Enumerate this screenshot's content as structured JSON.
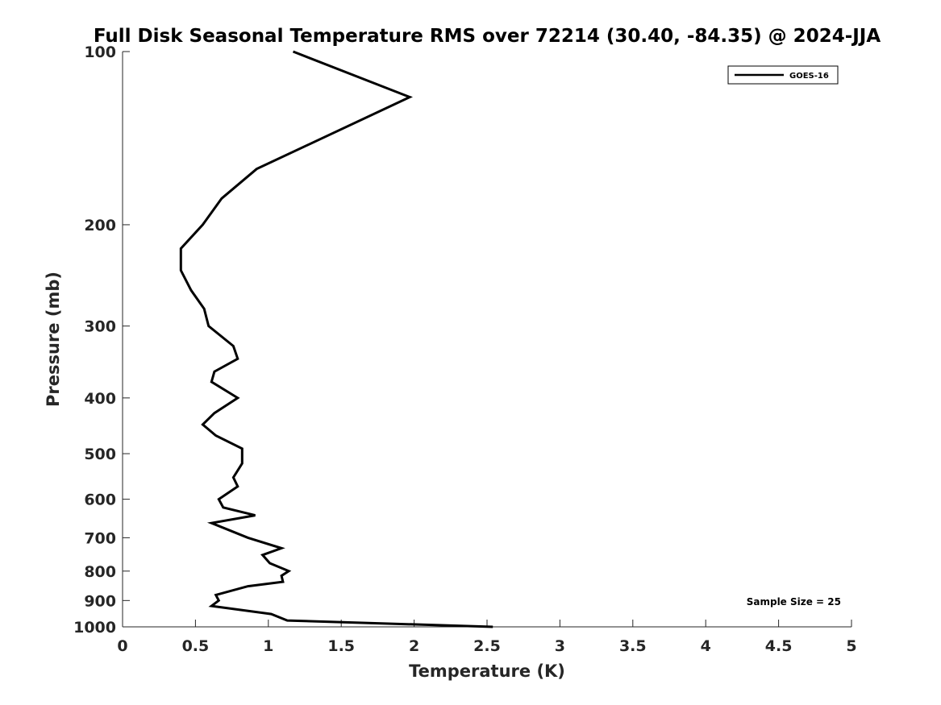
{
  "chart_data": {
    "type": "line",
    "title": "Full Disk Seasonal Temperature RMS over 72214 (30.40, -84.35) @ 2024-JJA",
    "xlabel": "Temperature (K)",
    "ylabel": "Pressure (mb)",
    "xlim": [
      0,
      5
    ],
    "ylim": [
      1000,
      100
    ],
    "yscale": "log",
    "y_reversed": true,
    "xticks": [
      0,
      0.5,
      1,
      1.5,
      2,
      2.5,
      3,
      3.5,
      4,
      4.5,
      5
    ],
    "xtick_labels": [
      "0",
      "0.5",
      "1",
      "1.5",
      "2",
      "2.5",
      "3",
      "3.5",
      "4",
      "4.5",
      "5"
    ],
    "yticks": [
      100,
      200,
      300,
      400,
      500,
      600,
      700,
      800,
      900,
      1000
    ],
    "ytick_labels": [
      "100",
      "200",
      "300",
      "400",
      "500",
      "600",
      "700",
      "800",
      "900",
      "1000"
    ],
    "grid": false,
    "legend": {
      "position": "top-right",
      "entries": [
        "GOES-16"
      ]
    },
    "annotation": "Sample Size = 25",
    "series": [
      {
        "name": "GOES-16",
        "color": "#000000",
        "points": [
          {
            "x": 1.17,
            "p": 100
          },
          {
            "x": 1.97,
            "p": 120
          },
          {
            "x": 0.92,
            "p": 160
          },
          {
            "x": 0.68,
            "p": 180
          },
          {
            "x": 0.55,
            "p": 200
          },
          {
            "x": 0.4,
            "p": 220
          },
          {
            "x": 0.4,
            "p": 240
          },
          {
            "x": 0.47,
            "p": 260
          },
          {
            "x": 0.56,
            "p": 280
          },
          {
            "x": 0.59,
            "p": 300
          },
          {
            "x": 0.76,
            "p": 325
          },
          {
            "x": 0.79,
            "p": 342
          },
          {
            "x": 0.63,
            "p": 360
          },
          {
            "x": 0.61,
            "p": 375
          },
          {
            "x": 0.79,
            "p": 400
          },
          {
            "x": 0.63,
            "p": 425
          },
          {
            "x": 0.55,
            "p": 445
          },
          {
            "x": 0.64,
            "p": 465
          },
          {
            "x": 0.82,
            "p": 490
          },
          {
            "x": 0.82,
            "p": 520
          },
          {
            "x": 0.76,
            "p": 550
          },
          {
            "x": 0.79,
            "p": 570
          },
          {
            "x": 0.66,
            "p": 600
          },
          {
            "x": 0.69,
            "p": 620
          },
          {
            "x": 0.91,
            "p": 640
          },
          {
            "x": 0.61,
            "p": 660
          },
          {
            "x": 0.86,
            "p": 700
          },
          {
            "x": 1.09,
            "p": 730
          },
          {
            "x": 0.96,
            "p": 750
          },
          {
            "x": 1.01,
            "p": 775
          },
          {
            "x": 1.14,
            "p": 800
          },
          {
            "x": 1.09,
            "p": 815
          },
          {
            "x": 1.1,
            "p": 835
          },
          {
            "x": 0.86,
            "p": 850
          },
          {
            "x": 0.64,
            "p": 880
          },
          {
            "x": 0.66,
            "p": 900
          },
          {
            "x": 0.61,
            "p": 920
          },
          {
            "x": 1.02,
            "p": 950
          },
          {
            "x": 1.13,
            "p": 975
          },
          {
            "x": 2.54,
            "p": 1000
          }
        ]
      }
    ]
  }
}
